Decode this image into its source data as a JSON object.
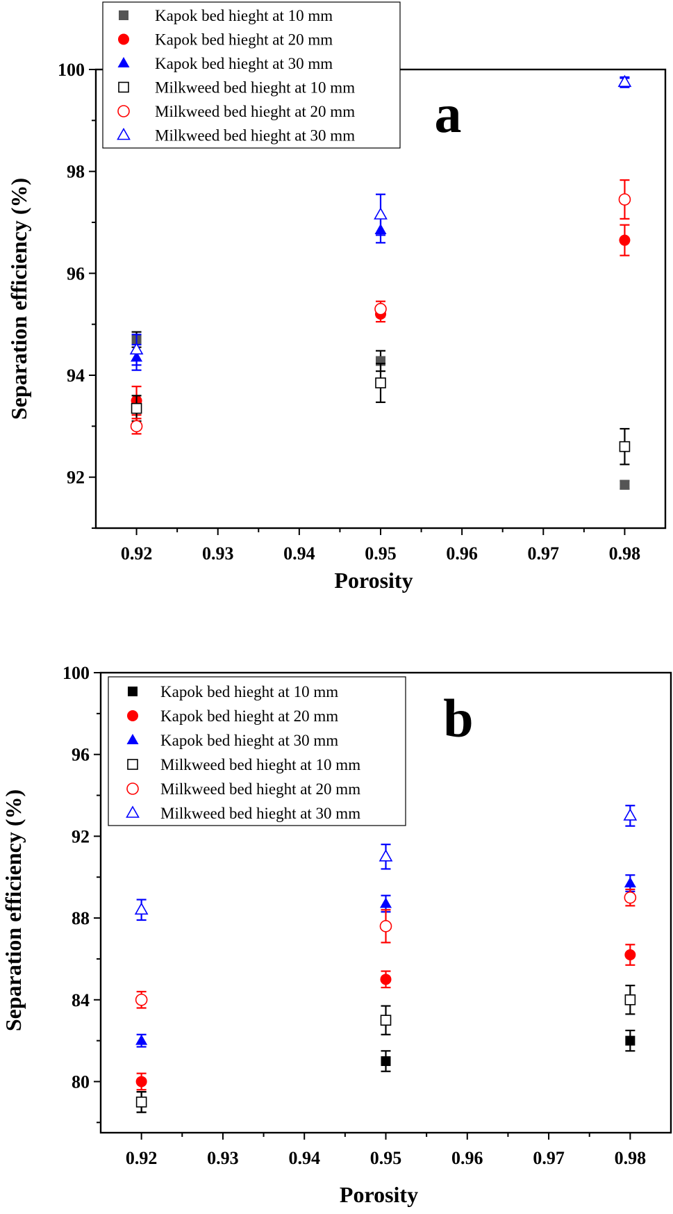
{
  "chart_data": [
    {
      "type": "scatter",
      "panel_label": "a",
      "xlabel": "Porosity",
      "ylabel": "Separation efficiency (%)",
      "xlim": [
        0.915,
        0.985
      ],
      "ylim": [
        91,
        100
      ],
      "x_ticks": [
        "0.92",
        "0.93",
        "0.94",
        "0.95",
        "0.96",
        "0.97",
        "0.98"
      ],
      "y_ticks": [
        "92",
        "94",
        "96",
        "98",
        "100"
      ],
      "legend_position": "top-left",
      "series": [
        {
          "name": "Kapok bed hieght at 10 mm",
          "marker": "square",
          "filled": true,
          "color": "#555555",
          "errcolor": "#000000",
          "x": [
            0.92,
            0.95,
            0.98
          ],
          "y": [
            94.7,
            94.28,
            91.85
          ],
          "err": [
            0.15,
            0.2,
            0.08
          ]
        },
        {
          "name": "Kapok bed hieght at 20 mm",
          "marker": "circle",
          "filled": true,
          "color": "#ff0000",
          "errcolor": "#ff0000",
          "x": [
            0.92,
            0.95,
            0.98
          ],
          "y": [
            93.5,
            95.2,
            96.65
          ],
          "err": [
            0.28,
            0.15,
            0.3
          ]
        },
        {
          "name": "Kapok bed hieght at 30 mm",
          "marker": "triangle",
          "filled": true,
          "color": "#0000ff",
          "errcolor": "#0000ff",
          "x": [
            0.92,
            0.95,
            0.98
          ],
          "y": [
            94.35,
            96.85,
            99.75
          ],
          "err": [
            0.25,
            0.25,
            0.08
          ]
        },
        {
          "name": "Milkweed bed hieght at 10 mm",
          "marker": "square",
          "filled": false,
          "color": "#000000",
          "errcolor": "#000000",
          "x": [
            0.92,
            0.95,
            0.98
          ],
          "y": [
            93.35,
            93.85,
            92.6
          ],
          "err": [
            0.25,
            0.38,
            0.35
          ]
        },
        {
          "name": "Milkweed bed hieght at 20 mm",
          "marker": "circle",
          "filled": false,
          "color": "#ff0000",
          "errcolor": "#ff0000",
          "x": [
            0.92,
            0.95,
            0.98
          ],
          "y": [
            93.0,
            95.3,
            97.45
          ],
          "err": [
            0.15,
            0.15,
            0.38
          ]
        },
        {
          "name": "Milkweed bed hieght at 30 mm",
          "marker": "triangle",
          "filled": false,
          "color": "#0000ff",
          "errcolor": "#0000ff",
          "x": [
            0.92,
            0.95,
            0.98
          ],
          "y": [
            94.5,
            97.15,
            99.75
          ],
          "err": [
            0.3,
            0.4,
            0.1
          ]
        }
      ]
    },
    {
      "type": "scatter",
      "panel_label": "b",
      "xlabel": "Porosity",
      "ylabel": "Separation efficiency (%)",
      "xlim": [
        0.915,
        0.985
      ],
      "ylim": [
        77.5,
        100
      ],
      "x_ticks": [
        "0.92",
        "0.93",
        "0.94",
        "0.95",
        "0.96",
        "0.97",
        "0.98"
      ],
      "y_ticks": [
        "80",
        "84",
        "88",
        "92",
        "96",
        "100"
      ],
      "legend_position": "top-left",
      "series": [
        {
          "name": "Kapok bed hieght at 10 mm",
          "marker": "square",
          "filled": true,
          "color": "#000000",
          "errcolor": "#000000",
          "x": [
            0.92,
            0.95,
            0.98
          ],
          "y": [
            79.0,
            81.0,
            82.0
          ],
          "err": [
            0.5,
            0.5,
            0.5
          ]
        },
        {
          "name": "Kapok bed hieght at 20 mm",
          "marker": "circle",
          "filled": true,
          "color": "#ff0000",
          "errcolor": "#ff0000",
          "x": [
            0.92,
            0.95,
            0.98
          ],
          "y": [
            80.0,
            85.0,
            86.2
          ],
          "err": [
            0.4,
            0.4,
            0.5
          ]
        },
        {
          "name": "Kapok bed hieght at 30 mm",
          "marker": "triangle",
          "filled": true,
          "color": "#0000ff",
          "errcolor": "#0000ff",
          "x": [
            0.92,
            0.95,
            0.98
          ],
          "y": [
            82.0,
            88.7,
            89.7
          ],
          "err": [
            0.3,
            0.4,
            0.4
          ]
        },
        {
          "name": "Milkweed bed hieght at 10 mm",
          "marker": "square",
          "filled": false,
          "color": "#000000",
          "errcolor": "#000000",
          "x": [
            0.92,
            0.95,
            0.98
          ],
          "y": [
            79.0,
            83.0,
            84.0
          ],
          "err": [
            0.5,
            0.7,
            0.7
          ]
        },
        {
          "name": "Milkweed bed hieght at 20 mm",
          "marker": "circle",
          "filled": false,
          "color": "#ff0000",
          "errcolor": "#ff0000",
          "x": [
            0.92,
            0.95,
            0.98
          ],
          "y": [
            84.0,
            87.6,
            89.0
          ],
          "err": [
            0.4,
            0.8,
            0.4
          ]
        },
        {
          "name": "Milkweed bed hieght at 30 mm",
          "marker": "triangle",
          "filled": false,
          "color": "#0000ff",
          "errcolor": "#0000ff",
          "x": [
            0.92,
            0.95,
            0.98
          ],
          "y": [
            88.4,
            91.0,
            93.0
          ],
          "err": [
            0.5,
            0.6,
            0.5
          ]
        }
      ]
    }
  ]
}
